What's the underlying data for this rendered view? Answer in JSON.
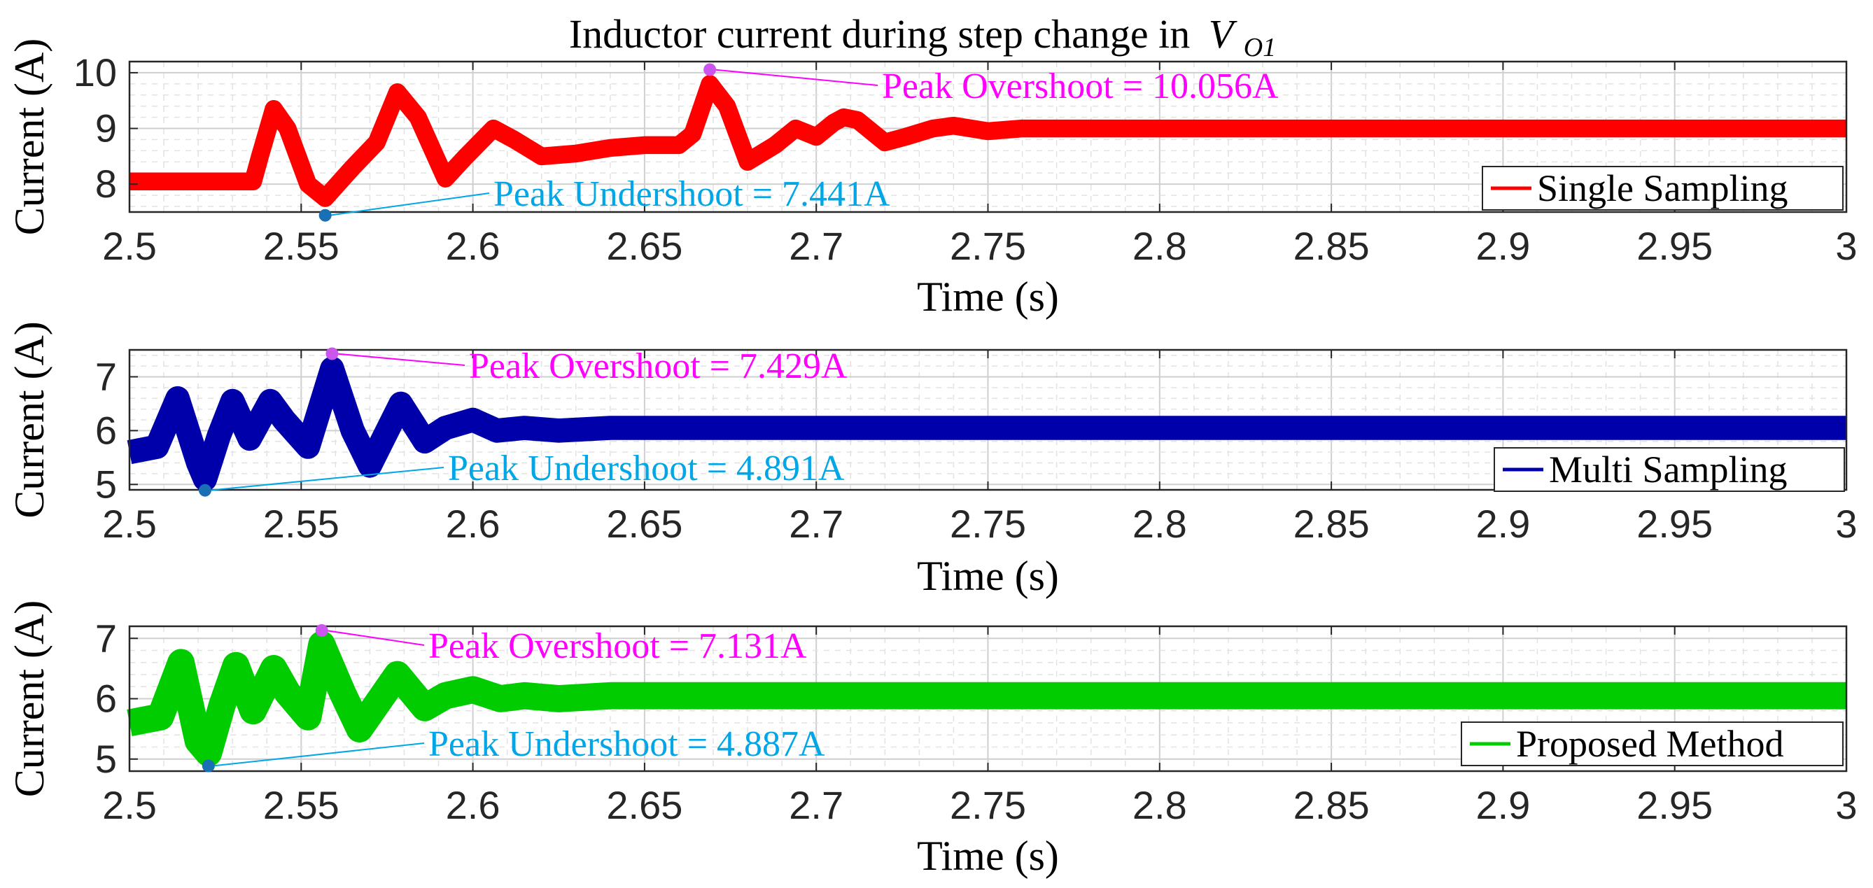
{
  "chart_data": [
    {
      "type": "line",
      "title": "Inductor current during step change in",
      "title_math": "V",
      "title_math_sub": "O1",
      "xlabel": "Time (s)",
      "ylabel": "Current (A)",
      "xlim": [
        2.5,
        3.0
      ],
      "ylim": [
        7.5,
        10.2
      ],
      "xticks": [
        "2.5",
        "2.55",
        "2.6",
        "2.65",
        "2.7",
        "2.75",
        "2.8",
        "2.85",
        "2.9",
        "2.95",
        "3"
      ],
      "yticks": [
        8,
        9,
        10
      ],
      "ytick_labels": [
        "8",
        "9",
        "10"
      ],
      "grid": true,
      "legend_position": "bottom-right",
      "series": [
        {
          "name": "Single Sampling",
          "color": "#ff0000",
          "ripple_band": 0.32,
          "x": [
            2.5,
            2.536,
            2.538,
            2.542,
            2.546,
            2.552,
            2.557,
            2.565,
            2.572,
            2.578,
            2.584,
            2.592,
            2.598,
            2.606,
            2.612,
            2.62,
            2.63,
            2.64,
            2.65,
            2.66,
            2.664,
            2.669,
            2.674,
            2.68,
            2.688,
            2.694,
            2.7,
            2.705,
            2.708,
            2.712,
            2.72,
            2.726,
            2.734,
            2.74,
            2.75,
            2.76,
            3.0
          ],
          "y": [
            8.05,
            8.05,
            8.5,
            9.35,
            9.0,
            8.0,
            7.75,
            8.3,
            8.75,
            9.65,
            9.2,
            8.1,
            8.5,
            9.0,
            8.8,
            8.5,
            8.55,
            8.65,
            8.7,
            8.7,
            8.9,
            9.8,
            9.4,
            8.4,
            8.7,
            9.0,
            8.85,
            9.1,
            9.2,
            9.15,
            8.75,
            8.85,
            9.0,
            9.05,
            8.95,
            9.0,
            9.0
          ]
        }
      ],
      "annotations": [
        {
          "label": "Peak Overshoot = 10.056A",
          "x": 2.669,
          "y": 10.056,
          "color": "#ff00ff"
        },
        {
          "label": "Peak Undershoot = 7.441A",
          "x": 2.557,
          "y": 7.441,
          "color": "#00a6e6"
        }
      ]
    },
    {
      "type": "line",
      "xlabel": "Time (s)",
      "ylabel": "Current (A)",
      "xlim": [
        2.5,
        3.0
      ],
      "ylim": [
        4.9,
        7.5
      ],
      "xticks": [
        "2.5",
        "2.55",
        "2.6",
        "2.65",
        "2.7",
        "2.75",
        "2.8",
        "2.85",
        "2.9",
        "2.95",
        "3"
      ],
      "yticks": [
        5,
        6,
        7
      ],
      "ytick_labels": [
        "5",
        "6",
        "7"
      ],
      "grid": true,
      "legend_position": "bottom-right",
      "series": [
        {
          "name": "Multi Sampling",
          "color": "#0000aa",
          "ripple_band": 0.45,
          "x": [
            2.5,
            2.508,
            2.514,
            2.52,
            2.522,
            2.526,
            2.53,
            2.535,
            2.541,
            2.545,
            2.552,
            2.559,
            2.565,
            2.57,
            2.579,
            2.586,
            2.592,
            2.6,
            2.607,
            2.615,
            2.625,
            2.64,
            3.0
          ],
          "y": [
            5.6,
            5.7,
            6.6,
            5.4,
            5.1,
            5.9,
            6.55,
            5.85,
            6.55,
            6.2,
            5.7,
            7.15,
            6.0,
            5.35,
            6.5,
            5.8,
            6.05,
            6.2,
            6.0,
            6.05,
            6.0,
            6.05,
            6.05
          ]
        }
      ],
      "annotations": [
        {
          "label": "Peak Overshoot = 7.429A",
          "x": 2.559,
          "y": 7.429,
          "color": "#ff00ff"
        },
        {
          "label": "Peak Undershoot = 4.891A",
          "x": 2.522,
          "y": 4.891,
          "color": "#00a6e6"
        }
      ]
    },
    {
      "type": "line",
      "xlabel": "Time (s)",
      "ylabel": "Current (A)",
      "xlim": [
        2.5,
        3.0
      ],
      "ylim": [
        4.8,
        7.2
      ],
      "xticks": [
        "2.5",
        "2.55",
        "2.6",
        "2.65",
        "2.7",
        "2.75",
        "2.8",
        "2.85",
        "2.9",
        "2.95",
        "3"
      ],
      "yticks": [
        5,
        6,
        7
      ],
      "ytick_labels": [
        "5",
        "6",
        "7"
      ],
      "grid": true,
      "legend_position": "bottom-right",
      "series": [
        {
          "name": "Proposed Method",
          "color": "#00cc00",
          "ripple_band": 0.45,
          "x": [
            2.5,
            2.509,
            2.515,
            2.52,
            2.523,
            2.527,
            2.531,
            2.536,
            2.542,
            2.546,
            2.552,
            2.556,
            2.562,
            2.567,
            2.578,
            2.586,
            2.592,
            2.6,
            2.608,
            2.615,
            2.625,
            2.64,
            3.0
          ],
          "y": [
            5.6,
            5.7,
            6.6,
            5.3,
            5.1,
            5.9,
            6.55,
            5.8,
            6.5,
            6.1,
            5.7,
            6.9,
            6.1,
            5.5,
            6.4,
            5.85,
            6.05,
            6.15,
            6.0,
            6.05,
            6.0,
            6.05,
            6.05
          ]
        }
      ],
      "annotations": [
        {
          "label": "Peak Overshoot = 7.131A",
          "x": 2.556,
          "y": 7.131,
          "color": "#ff00ff"
        },
        {
          "label": "Peak Undershoot = 4.887A",
          "x": 2.523,
          "y": 4.887,
          "color": "#00a6e6"
        }
      ]
    }
  ]
}
